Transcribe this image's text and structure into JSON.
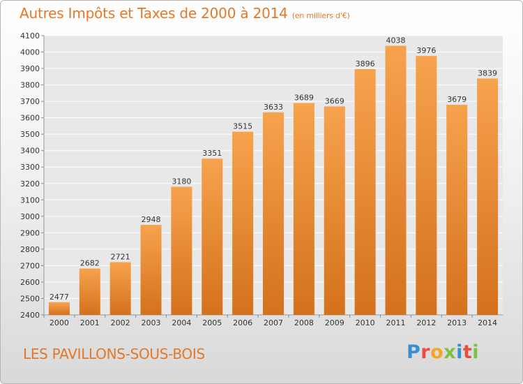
{
  "title": "Autres Impôts et Taxes de 2000 à 2014",
  "subtitle": "(en milliers d'€)",
  "town": "LES PAVILLONS-SOUS-BOIS",
  "logo": {
    "letters": [
      "P",
      "r",
      "o",
      "x",
      "i",
      "t",
      "i"
    ],
    "colors": [
      "#3a8fd3",
      "#e94e3c",
      "#f5a623",
      "#7cc242",
      "#3a8fd3",
      "#e94e3c",
      "#7cc242"
    ]
  },
  "colors": {
    "bar_top": "#f7a24d",
    "bar_bottom": "#d4711c",
    "text_accent": "#e2792a"
  },
  "chart_data": {
    "type": "bar",
    "categories": [
      "2000",
      "2001",
      "2002",
      "2003",
      "2004",
      "2005",
      "2006",
      "2007",
      "2008",
      "2009",
      "2010",
      "2011",
      "2012",
      "2013",
      "2014"
    ],
    "values": [
      2477,
      2682,
      2721,
      2948,
      3180,
      3351,
      3515,
      3633,
      3689,
      3669,
      3896,
      4038,
      3976,
      3679,
      3839
    ],
    "ylim": [
      2400,
      4100
    ],
    "yticks": [
      2400,
      2500,
      2600,
      2700,
      2800,
      2900,
      3000,
      3100,
      3200,
      3300,
      3400,
      3500,
      3600,
      3700,
      3800,
      3900,
      4000,
      4100
    ],
    "grid": true,
    "title": "Autres Impôts et Taxes de 2000 à 2014",
    "xlabel": "",
    "ylabel": ""
  }
}
